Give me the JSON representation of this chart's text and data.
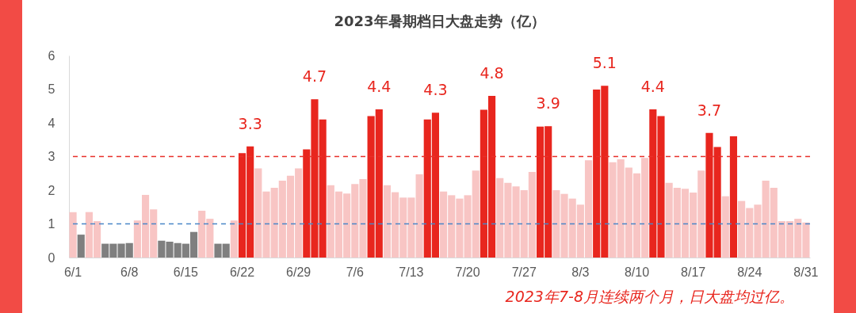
{
  "chart_data": {
    "type": "bar",
    "title": "2023年暑期档日大盘走势（亿）",
    "categories": [
      "6/1",
      null,
      null,
      null,
      null,
      null,
      null,
      "6/8",
      null,
      null,
      null,
      null,
      null,
      null,
      "6/15",
      null,
      null,
      null,
      null,
      null,
      null,
      "6/22",
      null,
      null,
      null,
      null,
      null,
      null,
      "6/29",
      null,
      null,
      null,
      null,
      null,
      null,
      "7/6",
      null,
      null,
      null,
      null,
      null,
      null,
      "7/13",
      null,
      null,
      null,
      null,
      null,
      null,
      "7/20",
      null,
      null,
      null,
      null,
      null,
      null,
      "7/27",
      null,
      null,
      null,
      null,
      null,
      null,
      "8/3",
      null,
      null,
      null,
      null,
      null,
      null,
      "8/10",
      null,
      null,
      null,
      null,
      null,
      null,
      "8/17",
      null,
      null,
      null,
      null,
      null,
      null,
      "8/24",
      null,
      null,
      null,
      null,
      null,
      null,
      "8/31"
    ],
    "values": [
      1.35,
      0.68,
      1.35,
      1.08,
      0.41,
      0.41,
      0.41,
      0.43,
      1.1,
      1.86,
      1.43,
      0.5,
      0.47,
      0.43,
      0.41,
      0.76,
      1.39,
      1.15,
      0.41,
      0.41,
      1.1,
      3.1,
      3.3,
      2.65,
      1.96,
      2.07,
      2.28,
      2.43,
      2.65,
      3.21,
      4.7,
      4.1,
      2.15,
      1.96,
      1.9,
      2.18,
      2.33,
      4.2,
      4.4,
      2.15,
      1.94,
      1.78,
      1.78,
      2.47,
      4.1,
      4.3,
      1.96,
      1.85,
      1.75,
      1.85,
      2.58,
      4.39,
      4.8,
      2.36,
      2.22,
      2.11,
      2.0,
      2.54,
      3.89,
      3.9,
      2.0,
      1.89,
      1.75,
      1.57,
      2.89,
      4.99,
      5.1,
      2.83,
      2.92,
      2.67,
      2.5,
      2.96,
      4.4,
      4.2,
      2.22,
      2.07,
      2.04,
      1.93,
      2.58,
      3.7,
      3.28,
      1.82,
      3.6,
      1.68,
      1.47,
      1.57,
      2.28,
      2.07,
      1.08,
      1.08,
      1.15,
      1.04
    ],
    "colors": [
      "#f8c5c4",
      "#7f7f7f",
      "#f8c5c4",
      "#f8c5c4",
      "#7f7f7f",
      "#7f7f7f",
      "#7f7f7f",
      "#7f7f7f",
      "#f8c5c4",
      "#f8c5c4",
      "#f8c5c4",
      "#7f7f7f",
      "#7f7f7f",
      "#7f7f7f",
      "#7f7f7f",
      "#7f7f7f",
      "#f8c5c4",
      "#f8c5c4",
      "#7f7f7f",
      "#7f7f7f",
      "#f8c5c4",
      "#e8261e",
      "#e8261e",
      "#f8c5c4",
      "#f8c5c4",
      "#f8c5c4",
      "#f8c5c4",
      "#f8c5c4",
      "#f8c5c4",
      "#e8261e",
      "#e8261e",
      "#e8261e",
      "#f8c5c4",
      "#f8c5c4",
      "#f8c5c4",
      "#f8c5c4",
      "#f8c5c4",
      "#e8261e",
      "#e8261e",
      "#f8c5c4",
      "#f8c5c4",
      "#f8c5c4",
      "#f8c5c4",
      "#f8c5c4",
      "#e8261e",
      "#e8261e",
      "#f8c5c4",
      "#f8c5c4",
      "#f8c5c4",
      "#f8c5c4",
      "#f8c5c4",
      "#e8261e",
      "#e8261e",
      "#f8c5c4",
      "#f8c5c4",
      "#f8c5c4",
      "#f8c5c4",
      "#f8c5c4",
      "#e8261e",
      "#e8261e",
      "#f8c5c4",
      "#f8c5c4",
      "#f8c5c4",
      "#f8c5c4",
      "#f8c5c4",
      "#e8261e",
      "#e8261e",
      "#f8c5c4",
      "#f8c5c4",
      "#f8c5c4",
      "#f8c5c4",
      "#f8c5c4",
      "#e8261e",
      "#e8261e",
      "#f8c5c4",
      "#f8c5c4",
      "#f8c5c4",
      "#f8c5c4",
      "#f8c5c4",
      "#e8261e",
      "#e8261e",
      "#f8c5c4",
      "#e8261e",
      "#f8c5c4",
      "#f8c5c4",
      "#f8c5c4",
      "#f8c5c4",
      "#f8c5c4",
      "#f8c5c4",
      "#f8c5c4",
      "#f8c5c4",
      "#f8c5c4"
    ],
    "value_labels": [
      null,
      null,
      null,
      null,
      null,
      null,
      null,
      null,
      null,
      null,
      null,
      null,
      null,
      null,
      null,
      null,
      null,
      null,
      null,
      null,
      null,
      null,
      "3.3",
      null,
      null,
      null,
      null,
      null,
      null,
      null,
      "4.7",
      null,
      null,
      null,
      null,
      null,
      null,
      null,
      "4.4",
      null,
      null,
      null,
      null,
      null,
      null,
      "4.3",
      null,
      null,
      null,
      null,
      null,
      null,
      "4.8",
      null,
      null,
      null,
      null,
      null,
      null,
      "3.9",
      null,
      null,
      null,
      null,
      null,
      null,
      "5.1",
      null,
      null,
      null,
      null,
      null,
      "4.4",
      null,
      null,
      null,
      null,
      null,
      null,
      "3.7",
      null,
      null,
      null,
      null,
      null,
      null,
      null,
      null,
      null,
      null,
      null,
      null
    ],
    "ylim": [
      0,
      6
    ],
    "yticks": [
      0,
      1,
      2,
      3,
      4,
      5,
      6
    ],
    "ref_lines": [
      {
        "axis": "y",
        "value": 3,
        "color": "#e8302a",
        "line_style": "dashed"
      },
      {
        "axis": "y",
        "value": 1,
        "color": "#4a86c8",
        "line_style": "dashed"
      }
    ],
    "annotations": [
      "2023年7-8月连续两个月，日大盘均过亿。"
    ]
  }
}
